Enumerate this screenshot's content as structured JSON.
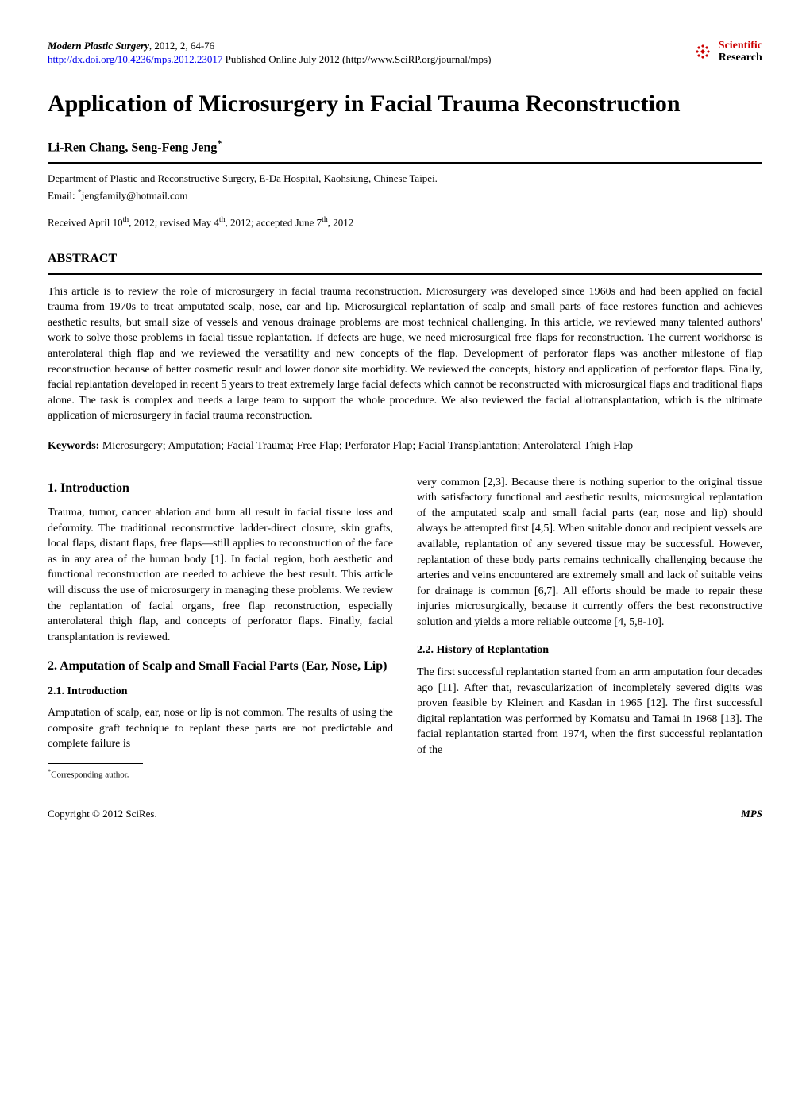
{
  "header": {
    "journal_citation_html": "<span class=\"journal-name\">Modern Plastic Surgery</span>, 2012, 2, 64-76",
    "doi_url": "http://dx.doi.org/10.4236/mps.2012.23017",
    "pub_info": " Published Online July 2012 (http://www.SciRP.org/journal/mps)",
    "publisher_top": "Scientific",
    "publisher_bottom": "Research"
  },
  "title": "Application of Microsurgery in Facial Trauma Reconstruction",
  "authors": "Li-Ren Chang, Seng-Feng Jeng",
  "affiliation": "Department of Plastic and Reconstructive Surgery, E-Da Hospital, Kaohsiung, Chinese Taipei.",
  "email_label": "Email: ",
  "email": "jengfamily@hotmail.com",
  "received_html": "Received April 10<sup>th</sup>, 2012; revised May 4<sup>th</sup>, 2012; accepted June 7<sup>th</sup>, 2012",
  "abstract_heading": "ABSTRACT",
  "abstract_text": "This article is to review the role of microsurgery in facial trauma reconstruction. Microsurgery was developed since 1960s and had been applied on facial trauma from 1970s to treat amputated scalp, nose, ear and lip. Microsurgical replantation of scalp and small parts of face restores function and achieves aesthetic results, but small size of vessels and venous drainage problems are most technical challenging. In this article, we reviewed many talented authors' work to solve those problems in facial tissue replantation. If defects are huge, we need microsurgical free flaps for reconstruction. The current workhorse is anterolateral thigh flap and we reviewed the versatility and new concepts of the flap. Development of perforator flaps was another milestone of flap reconstruction because of better cosmetic result and lower donor site morbidity. We reviewed the concepts, history and application of perforator flaps. Finally, facial replantation developed in recent 5 years to treat extremely large facial defects which cannot be reconstructed with microsurgical flaps and traditional flaps alone. The task is complex and needs a large team to support the whole procedure. We also reviewed the facial allotransplantation, which is the ultimate application of microsurgery in facial trauma reconstruction.",
  "keywords_label": "Keywords:",
  "keywords_text": " Microsurgery; Amputation; Facial Trauma; Free Flap; Perforator Flap; Facial Transplantation; Anterolateral Thigh Flap",
  "left_column": {
    "s1_heading": "1. Introduction",
    "s1_para": "Trauma, tumor, cancer ablation and burn all result in facial tissue loss and deformity. The traditional reconstructive ladder-direct closure, skin grafts, local flaps, distant flaps, free flaps—still applies to reconstruction of the face as in any area of the human body [1]. In facial region, both aesthetic and functional reconstruction are needed to achieve the best result. This article will discuss the use of microsurgery in managing these problems. We review the replantation of facial organs, free flap reconstruction, especially anterolateral thigh flap, and concepts of perforator flaps. Finally, facial transplantation is reviewed.",
    "s2_heading": "2. Amputation of Scalp and Small Facial Parts (Ear, Nose, Lip)",
    "s2_1_heading": "2.1. Introduction",
    "s2_1_para": "Amputation of scalp, ear, nose or lip is not common. The results of using the composite graft technique to replant these parts are not predictable and complete failure is",
    "footnote": "Corresponding author."
  },
  "right_column": {
    "top_para": "very common [2,3]. Because there is nothing superior to the original tissue with satisfactory functional and aesthetic results, microsurgical replantation of the amputated scalp and small facial parts (ear, nose and lip) should always be attempted first [4,5]. When suitable donor and recipient vessels are available, replantation of any severed tissue may be successful. However, replantation of these body parts remains technically challenging because the arteries and veins encountered are extremely small and lack of suitable veins for drainage is common [6,7]. All efforts should be made to repair these injuries microsurgically, because it currently offers the best reconstructive solution and yields a more reliable outcome [4, 5,8-10].",
    "s2_2_heading": "2.2. History of Replantation",
    "s2_2_para": "The first successful replantation started from an arm amputation four decades ago [11]. After that, revascularization of incompletely severed digits was proven feasible by Kleinert and Kasdan in 1965 [12]. The first successful digital replantation was performed by Komatsu and Tamai in 1968 [13]. The facial replantation started from 1974, when the first successful replantation of the"
  },
  "footer": {
    "left": "Copyright © 2012 SciRes.",
    "right": "MPS"
  },
  "colors": {
    "text": "#000000",
    "background": "#ffffff",
    "link": "#0000ee",
    "logo_red": "#cc0000"
  }
}
